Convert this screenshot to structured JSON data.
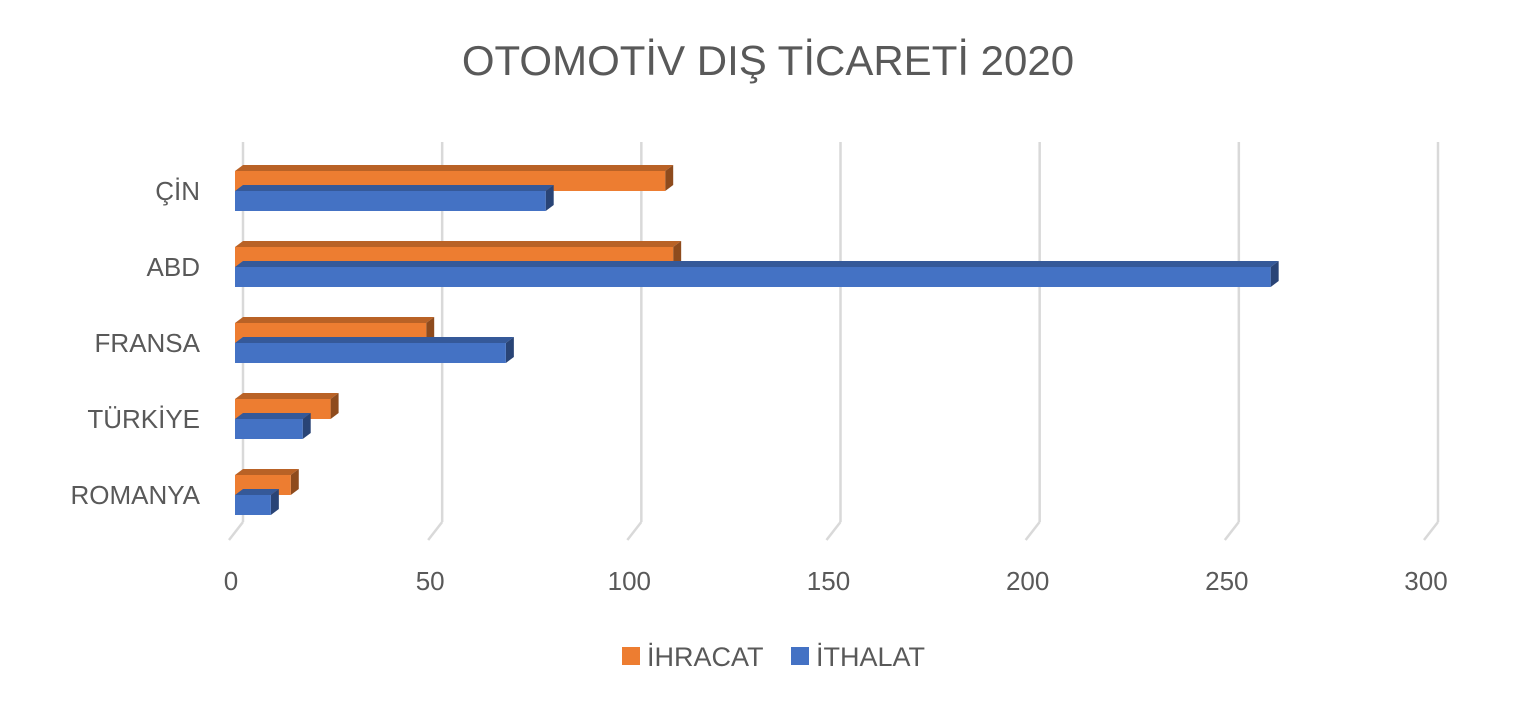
{
  "chart_data": {
    "type": "bar",
    "orientation": "horizontal",
    "style": "3d-clustered",
    "title": "OTOMOTİV DIŞ TİCARETİ 2020",
    "xlabel": "",
    "ylabel": "",
    "categories": [
      "ÇİN",
      "ABD",
      "FRANSA",
      "TÜRKİYE",
      "ROMANYA"
    ],
    "series": [
      {
        "name": "İHRACAT",
        "color": "#ED7D31",
        "values": [
          108,
          110,
          48,
          24,
          14
        ]
      },
      {
        "name": "İTHALAT",
        "color": "#4472C4",
        "values": [
          78,
          260,
          68,
          17,
          9
        ]
      }
    ],
    "xlim": [
      0,
      300
    ],
    "xticks": [
      "0",
      "50",
      "100",
      "150",
      "200",
      "250",
      "300"
    ],
    "grid": true,
    "legend": "bottom"
  }
}
